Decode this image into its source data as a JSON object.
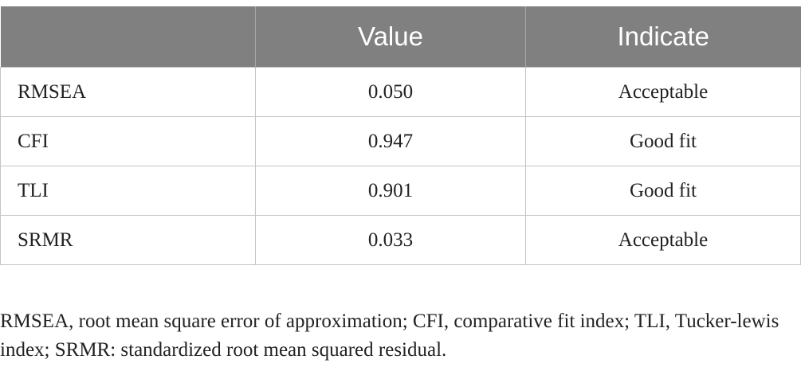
{
  "table": {
    "headers": [
      "",
      "Value",
      "Indicate"
    ],
    "rows": [
      {
        "name": "RMSEA",
        "value": "0.050",
        "indicate": "Acceptable"
      },
      {
        "name": "CFI",
        "value": "0.947",
        "indicate": "Good fit"
      },
      {
        "name": "TLI",
        "value": "0.901",
        "indicate": "Good fit"
      },
      {
        "name": "SRMR",
        "value": "0.033",
        "indicate": "Acceptable"
      }
    ]
  },
  "footnote": "RMSEA, root mean square error of approximation; CFI, comparative fit index; TLI, Tucker-lewis index; SRMR: standardized root mean squared residual."
}
